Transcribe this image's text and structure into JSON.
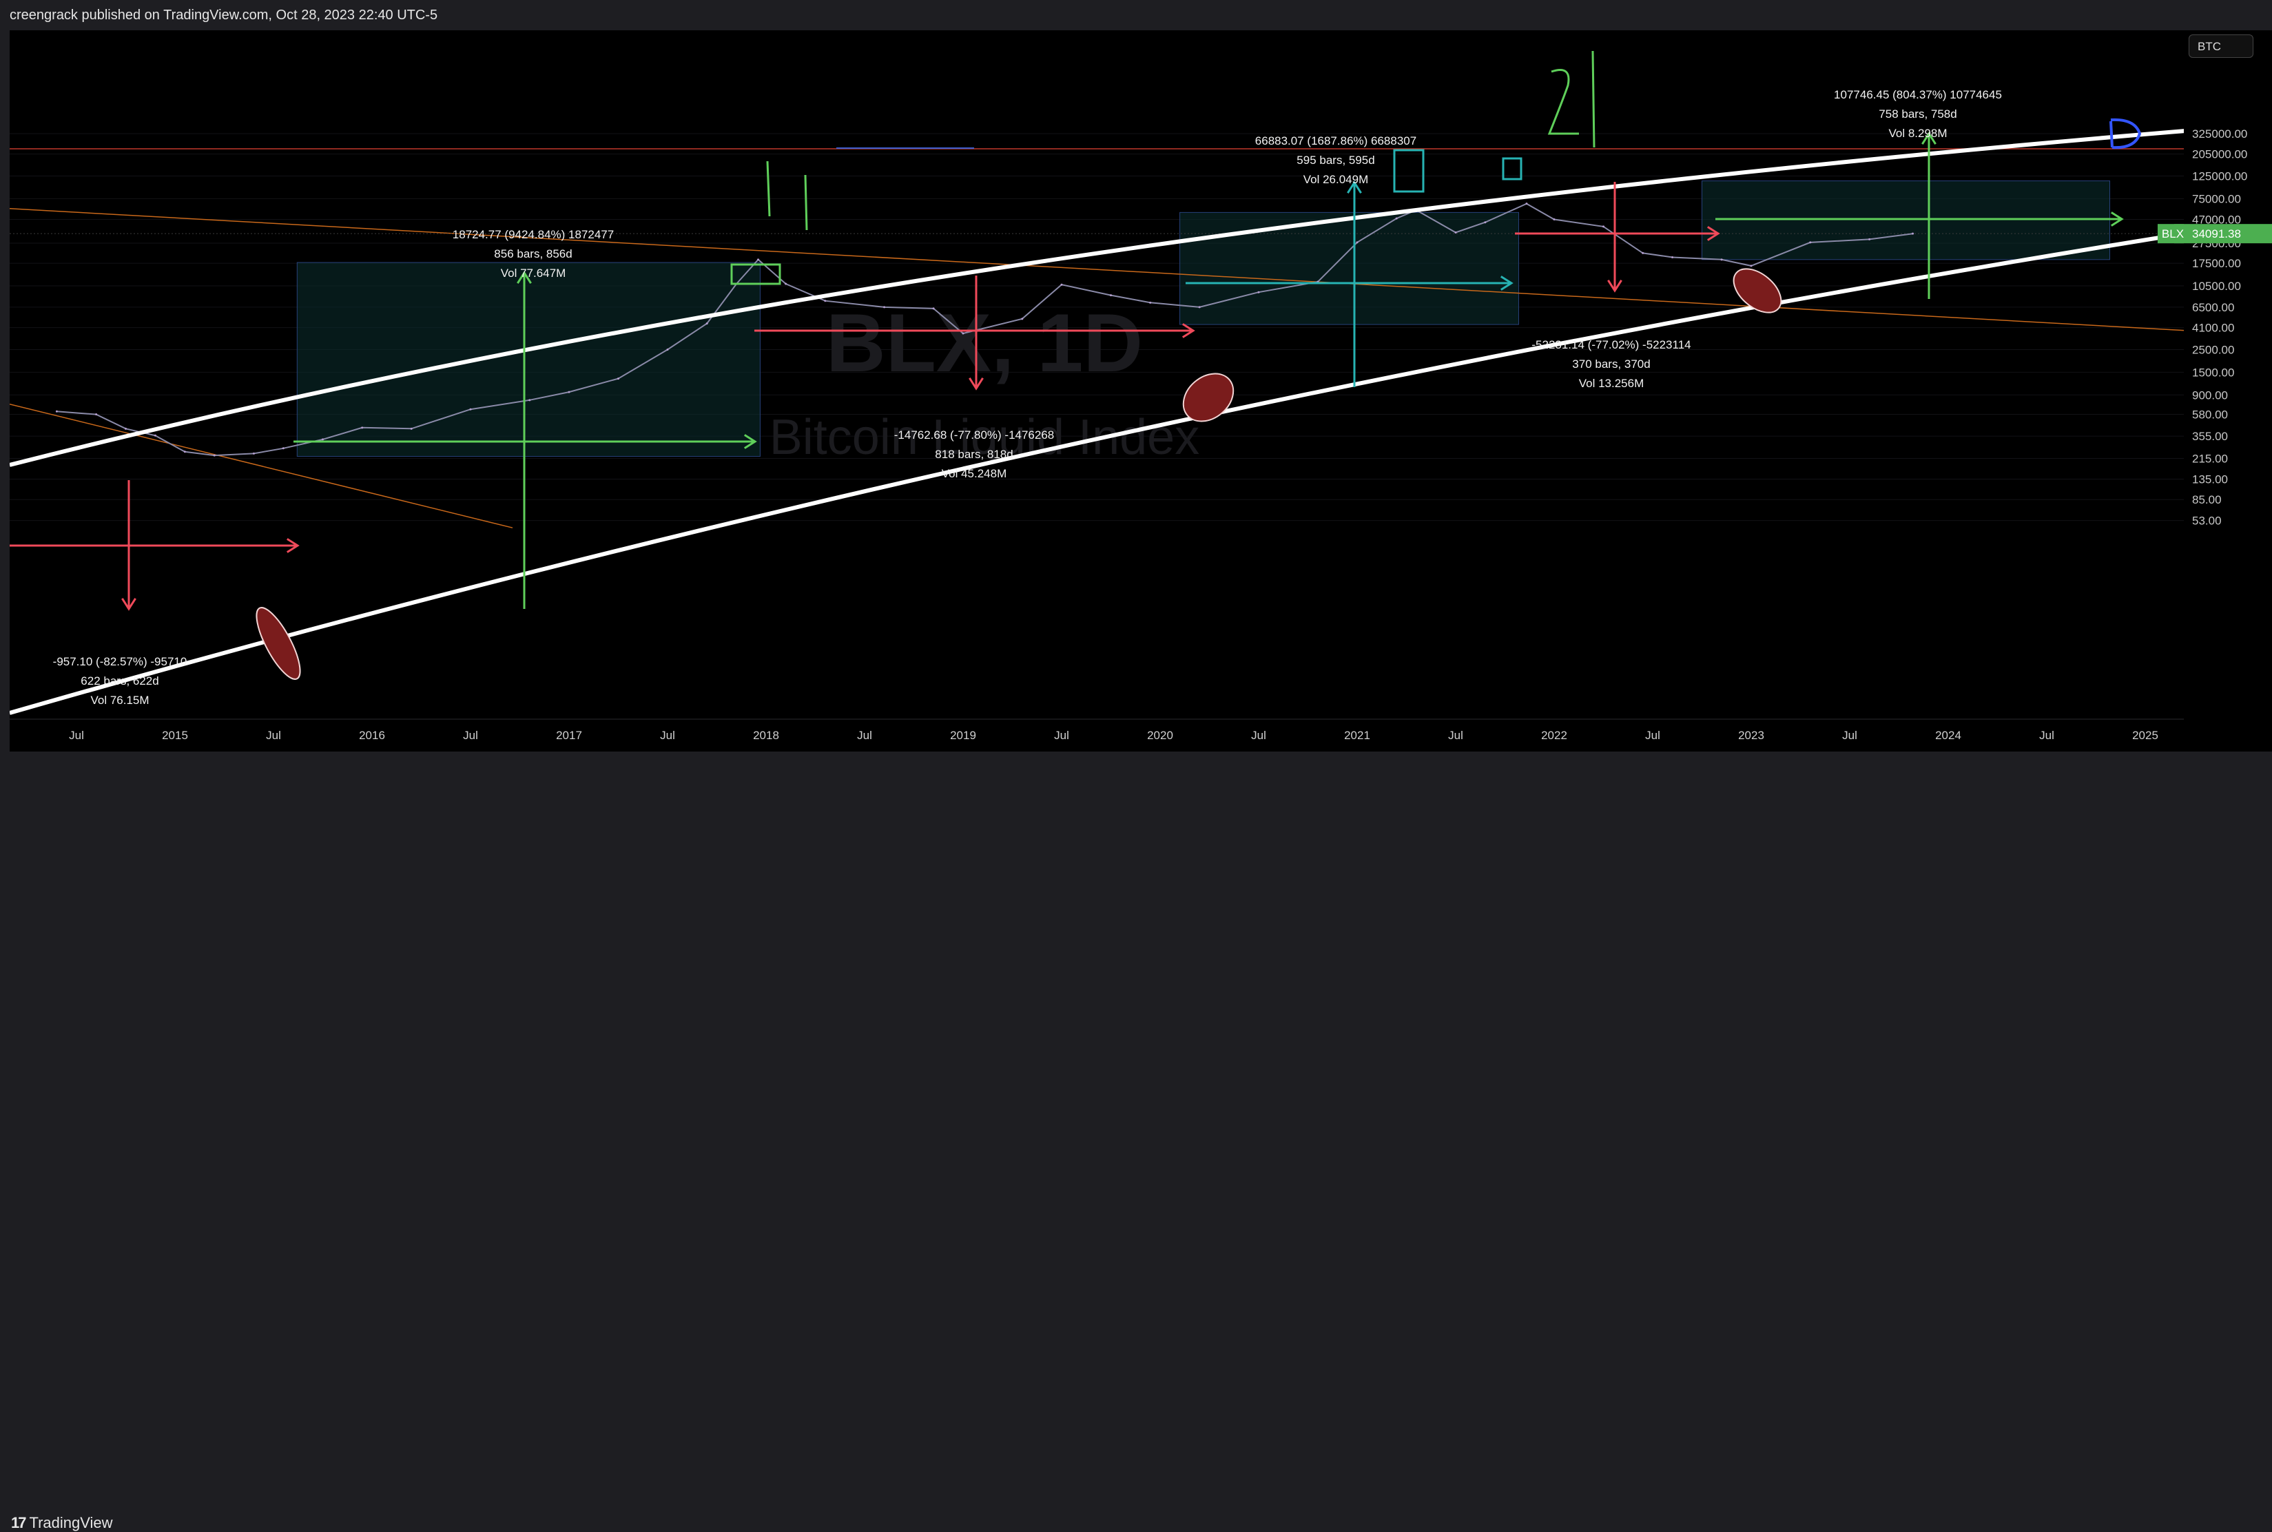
{
  "header": {
    "text": "creengrack published on TradingView.com, Oct 28, 2023 22:40 UTC-5"
  },
  "footer": {
    "brand": "TradingView",
    "logo_glyph": "17"
  },
  "symbol_badge": "BTC",
  "watermark": {
    "symbol": "BLX, 1D",
    "name": "Bitcoin Liquid Index"
  },
  "current_price": {
    "label": "BLX",
    "value": "34091.38",
    "color": "#4caf50"
  },
  "chart_data": {
    "type": "line",
    "scale": "log",
    "x_ticks": [
      "Jul",
      "2015",
      "Jul",
      "2016",
      "Jul",
      "2017",
      "Jul",
      "2018",
      "Jul",
      "2019",
      "Jul",
      "2020",
      "Jul",
      "2021",
      "Jul",
      "2022",
      "Jul",
      "2023",
      "Jul",
      "2024",
      "Jul",
      "2025"
    ],
    "y_ticks": [
      "325000.00",
      "205000.00",
      "125000.00",
      "75000.00",
      "47000.00",
      "27500.00",
      "17500.00",
      "10500.00",
      "6500.00",
      "4100.00",
      "2500.00",
      "1500.00",
      "900.00",
      "580.00",
      "355.00",
      "215.00",
      "135.00",
      "85.00",
      "53.00"
    ],
    "series": [
      {
        "x": [
          2014.4,
          2014.6,
          2014.75,
          2014.9,
          2015.05,
          2015.2,
          2015.4,
          2015.55,
          2015.75,
          2015.95,
          2016.2,
          2016.5,
          2016.8,
          2017.0,
          2017.25,
          2017.5,
          2017.7,
          2017.85,
          2017.96,
          2018.1,
          2018.3,
          2018.6,
          2018.85,
          2019.0,
          2019.3,
          2019.5,
          2019.75,
          2019.95,
          2020.2,
          2020.5,
          2020.8,
          2021.0,
          2021.2,
          2021.3,
          2021.5,
          2021.65,
          2021.86,
          2022.0,
          2022.25,
          2022.45,
          2022.6,
          2022.85,
          2023.0,
          2023.3,
          2023.6,
          2023.82
        ],
        "y": [
          620,
          580,
          420,
          360,
          250,
          230,
          240,
          270,
          330,
          430,
          420,
          650,
          800,
          960,
          1300,
          2500,
          4500,
          11000,
          19000,
          11000,
          7500,
          6500,
          6300,
          3600,
          5000,
          10800,
          8500,
          7200,
          6500,
          9100,
          11500,
          28000,
          48000,
          58000,
          35000,
          44000,
          67000,
          47000,
          40000,
          22000,
          20000,
          19000,
          16500,
          28000,
          30000,
          34091
        ]
      }
    ],
    "annotations": [
      {
        "lines": [
          "-957.10 (-82.57%) -95710",
          "622 bars, 622d",
          "Vol 76.15M"
        ]
      },
      {
        "lines": [
          "18724.77 (9424.84%) 1872477",
          "856 bars, 856d",
          "Vol 77.647M"
        ]
      },
      {
        "lines": [
          "-14762.68 (-77.80%) -1476268",
          "818 bars, 818d",
          "Vol 45.248M"
        ]
      },
      {
        "lines": [
          "66883.07 (1687.86%) 6688307",
          "595 bars, 595d",
          "Vol 26.049M"
        ]
      },
      {
        "lines": [
          "-52231.14 (-77.02%) -5223114",
          "370 bars, 370d",
          "Vol 13.256M"
        ]
      },
      {
        "lines": [
          "107746.45 (804.37%) 10774645",
          "758 bars, 758d",
          "Vol 8.298M"
        ]
      }
    ],
    "handwritten_marks": [
      "1",
      "2",
      "3"
    ],
    "colors": {
      "background": "#000000",
      "channel": "#ffffff",
      "up_arrow": "#5fcf5a",
      "down_arrow": "#f04a5a",
      "box_fill": "#0b3030",
      "teal": "#27b3b3",
      "orange_line": "#c9681a",
      "red_hline": "#c0392b",
      "ellipse_fill": "#7a1c1c"
    }
  }
}
